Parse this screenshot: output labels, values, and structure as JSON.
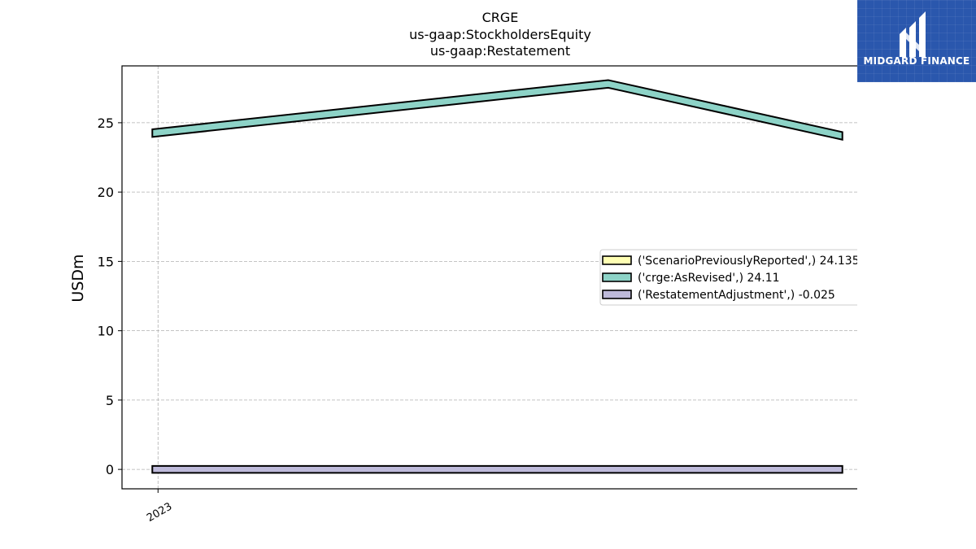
{
  "chart_data": {
    "type": "area",
    "title_lines": [
      "CRGE",
      "us-gaap:StockholdersEquity",
      "us-gaap:Restatement"
    ],
    "xlabel": "",
    "ylabel": "USDm",
    "x_tick_labels": [
      "2023"
    ],
    "y_ticks": [
      0,
      5,
      10,
      15,
      20,
      25
    ],
    "ylim": [
      -1.4,
      29.1
    ],
    "grid": true,
    "legend_position": "center-right",
    "x_positions": [
      0,
      1,
      1.52
    ],
    "xlim": [
      -0.08,
      1.6
    ],
    "series": [
      {
        "name": "('ScenarioPreviouslyReported',) 24.135",
        "color": "#ffffb3",
        "values": [
          24.3,
          27.85,
          24.1
        ],
        "thickness": 0.55,
        "visible": false
      },
      {
        "name": "('crge:AsRevised',) 24.11",
        "color": "#8dd3c7",
        "values": [
          24.25,
          27.8,
          24.05
        ],
        "thickness": 0.55,
        "visible": true
      },
      {
        "name": "('RestatementAdjustment',) -0.025",
        "color": "#bebada",
        "values": [
          0.0,
          0.0,
          0.0
        ],
        "thickness": 0.5,
        "visible": true
      }
    ]
  },
  "logo": {
    "text": "MIDGARD FINANCE"
  }
}
